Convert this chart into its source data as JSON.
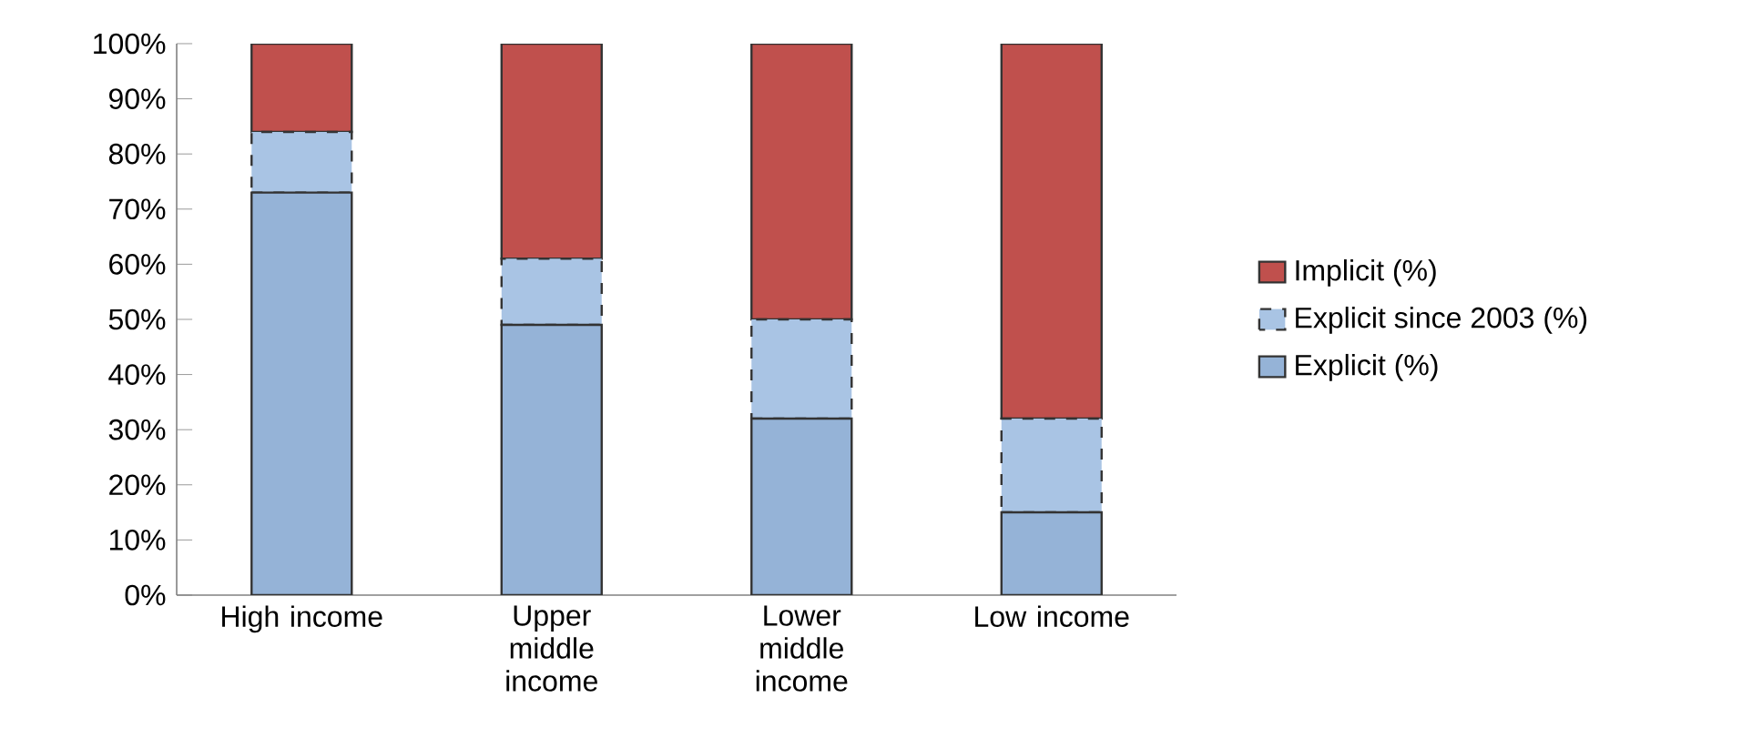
{
  "chart_data": {
    "type": "bar",
    "stacked": true,
    "categories": [
      "High income",
      "Upper middle income",
      "Lower middle income",
      "Low income"
    ],
    "series": [
      {
        "name": "Explicit (%)",
        "color": "#95b3d7",
        "values": [
          73,
          49,
          32,
          15
        ]
      },
      {
        "name": "Explicit since 2003 (%)",
        "color": "#a9c4e4",
        "line_style": "dashed",
        "values": [
          11,
          12,
          18,
          17
        ]
      },
      {
        "name": "Implicit (%)",
        "color": "#c0504d",
        "values": [
          16,
          39,
          50,
          68
        ]
      }
    ],
    "ylim": [
      0,
      100
    ],
    "yticks": [
      {
        "value": 0,
        "label": "0%"
      },
      {
        "value": 10,
        "label": "10%"
      },
      {
        "value": 20,
        "label": "20%"
      },
      {
        "value": 30,
        "label": "30%"
      },
      {
        "value": 40,
        "label": "40%"
      },
      {
        "value": 50,
        "label": "50%"
      },
      {
        "value": 60,
        "label": "60%"
      },
      {
        "value": 70,
        "label": "70%"
      },
      {
        "value": 80,
        "label": "80%"
      },
      {
        "value": 90,
        "label": "90%"
      },
      {
        "value": 100,
        "label": "100%"
      }
    ],
    "legend": "right",
    "grid": false
  }
}
